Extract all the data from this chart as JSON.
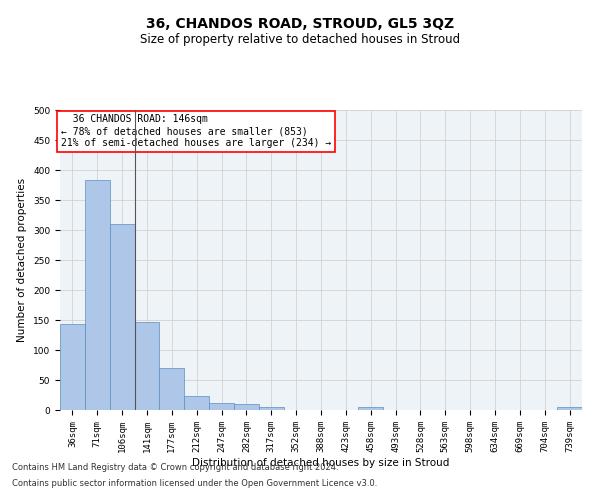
{
  "title": "36, CHANDOS ROAD, STROUD, GL5 3QZ",
  "subtitle": "Size of property relative to detached houses in Stroud",
  "xlabel": "Distribution of detached houses by size in Stroud",
  "ylabel": "Number of detached properties",
  "bar_labels": [
    "36sqm",
    "71sqm",
    "106sqm",
    "141sqm",
    "177sqm",
    "212sqm",
    "247sqm",
    "282sqm",
    "317sqm",
    "352sqm",
    "388sqm",
    "423sqm",
    "458sqm",
    "493sqm",
    "528sqm",
    "563sqm",
    "598sqm",
    "634sqm",
    "669sqm",
    "704sqm",
    "739sqm"
  ],
  "bar_values": [
    143,
    384,
    310,
    147,
    70,
    23,
    11,
    10,
    5,
    0,
    0,
    0,
    5,
    0,
    0,
    0,
    0,
    0,
    0,
    0,
    5
  ],
  "bar_color": "#aec6e8",
  "bar_edge_color": "#5a8fc2",
  "ylim": [
    0,
    500
  ],
  "yticks": [
    0,
    50,
    100,
    150,
    200,
    250,
    300,
    350,
    400,
    450,
    500
  ],
  "property_label": "36 CHANDOS ROAD: 146sqm",
  "pct_smaller": 78,
  "n_smaller": 853,
  "pct_larger": 21,
  "n_larger": 234,
  "vline_x": 2.5,
  "footer_line1": "Contains HM Land Registry data © Crown copyright and database right 2024.",
  "footer_line2": "Contains public sector information licensed under the Open Government Licence v3.0.",
  "grid_color": "#cccccc",
  "bg_color": "#eef3f8",
  "title_fontsize": 10,
  "subtitle_fontsize": 8.5,
  "axis_label_fontsize": 7.5,
  "tick_fontsize": 6.5,
  "annotation_fontsize": 7,
  "footer_fontsize": 6
}
